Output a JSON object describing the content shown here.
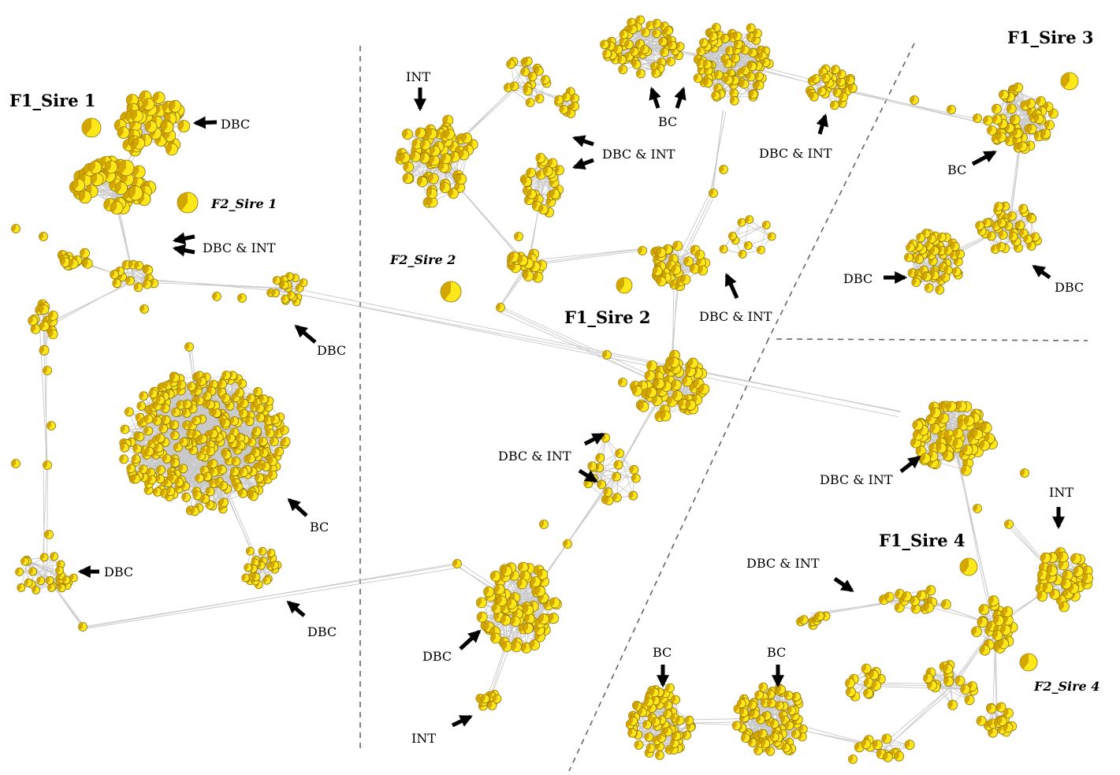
{
  "sires": [
    {
      "id": "f1-sire-1",
      "label": "F1_Sire 1"
    },
    {
      "id": "f1-sire-2",
      "label": "F1_Sire 2"
    },
    {
      "id": "f1-sire-3",
      "label": "F1_Sire 3"
    },
    {
      "id": "f1-sire-4",
      "label": "F1_Sire 4"
    }
  ],
  "f2_sires": [
    {
      "id": "f2-sire-1",
      "label": "F2_Sire 1"
    },
    {
      "id": "f2-sire-2",
      "label": "F2_Sire 2"
    },
    {
      "id": "f2-sire-4",
      "label": "F2_Sire 4"
    }
  ],
  "annotations": [
    {
      "id": "a1",
      "text": "DBC"
    },
    {
      "id": "a2",
      "text": "DBC & INT"
    },
    {
      "id": "a3",
      "text": "DBC"
    },
    {
      "id": "a4",
      "text": "BC"
    },
    {
      "id": "a5",
      "text": "DBC"
    },
    {
      "id": "a6",
      "text": "DBC"
    },
    {
      "id": "a7",
      "text": "INT"
    },
    {
      "id": "a8",
      "text": "DBC & INT"
    },
    {
      "id": "a9",
      "text": "BC"
    },
    {
      "id": "a10",
      "text": "DBC & INT"
    },
    {
      "id": "a11",
      "text": "DBC & INT"
    },
    {
      "id": "a12",
      "text": "DBC & INT"
    },
    {
      "id": "a13",
      "text": "DBC"
    },
    {
      "id": "a14",
      "text": "INT"
    },
    {
      "id": "a15",
      "text": "BC"
    },
    {
      "id": "a16",
      "text": "DBC"
    },
    {
      "id": "a17",
      "text": "DBC"
    },
    {
      "id": "a18",
      "text": "DBC & INT"
    },
    {
      "id": "a19",
      "text": "INT"
    },
    {
      "id": "a20",
      "text": "DBC & INT"
    },
    {
      "id": "a21",
      "text": "BC"
    },
    {
      "id": "a22",
      "text": "BC"
    }
  ],
  "colors": {
    "node_light": "#ffe81a",
    "node_dark": "#d4a600",
    "node_stroke": "#8a6d00",
    "edge": "#c8c8c8",
    "divider": "#666666",
    "arrow": "#000000"
  }
}
